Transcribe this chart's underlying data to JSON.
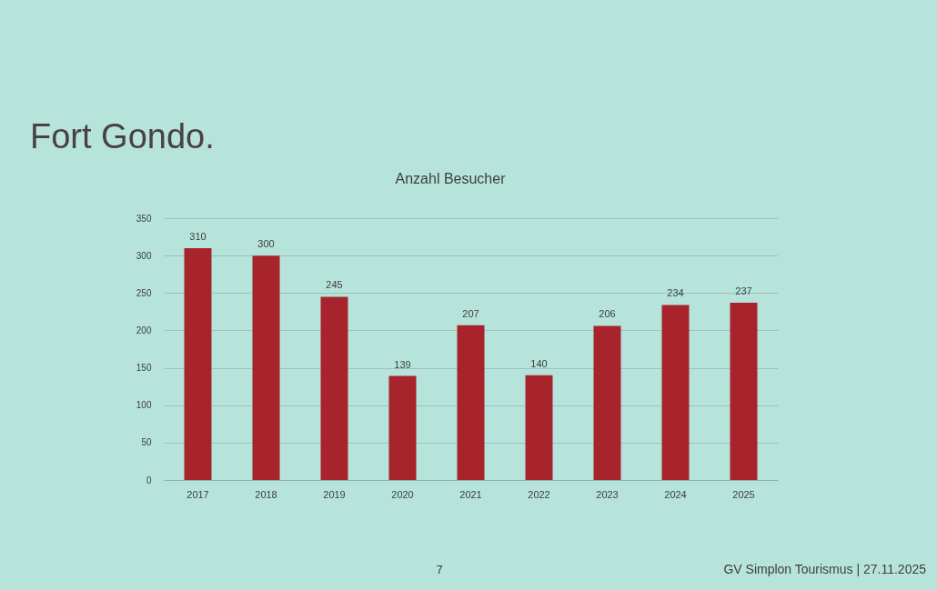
{
  "chart_data": {
    "type": "bar",
    "title": "Fort Gondo.",
    "subtitle": "Anzahl Besucher",
    "categories": [
      "2017",
      "2018",
      "2019",
      "2020",
      "2021",
      "2022",
      "2023",
      "2024",
      "2025"
    ],
    "values": [
      310,
      300,
      245,
      139,
      207,
      140,
      206,
      234,
      237
    ],
    "color": "#a8242c",
    "ylim": [
      0,
      350
    ],
    "yticks": [
      0,
      50,
      100,
      150,
      200,
      250,
      300,
      350
    ],
    "grid": "y",
    "data_labels": true,
    "annotations": [
      "7",
      "GV Simplon Tourismus | 27.11.2025"
    ]
  }
}
